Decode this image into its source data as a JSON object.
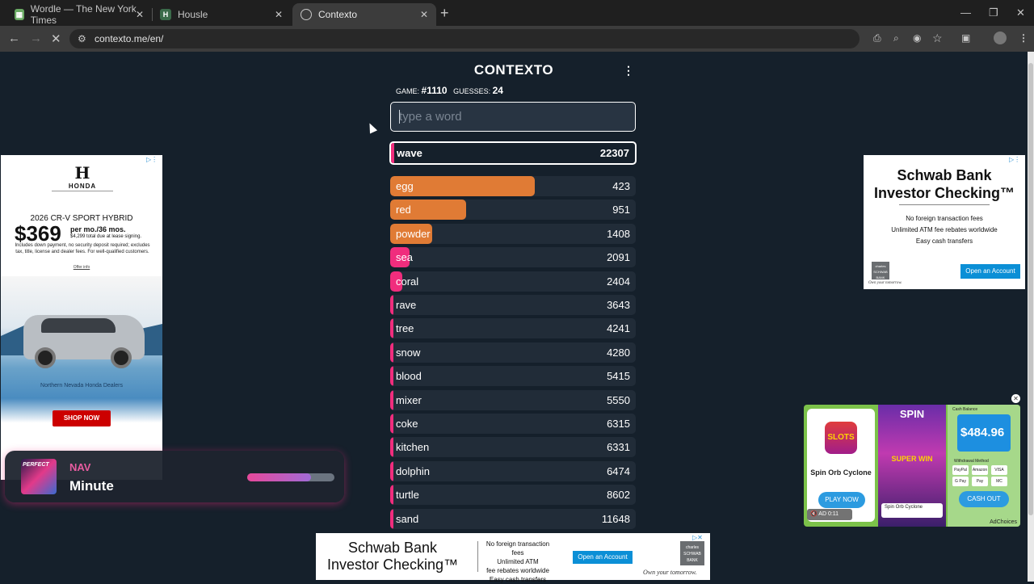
{
  "browser": {
    "tabs": [
      {
        "title": "Wordle — The New York Times",
        "favicon": "wordle-grid-icon"
      },
      {
        "title": "Housle",
        "favicon": "housle-icon"
      },
      {
        "title": "Contexto",
        "favicon": "contexto-icon"
      }
    ],
    "url": "contexto.me/en/"
  },
  "game": {
    "title": "CONTEXTO",
    "game_label": "GAME:",
    "game_number": "#1110",
    "guesses_label": "GUESSES:",
    "guesses_count": "24",
    "input_placeholder": "type a word",
    "last_guess": {
      "word": "wave",
      "rank": "22307"
    },
    "guesses": [
      {
        "word": "egg",
        "rank": "423",
        "fill": 0.59,
        "color": "#e07b35"
      },
      {
        "word": "red",
        "rank": "951",
        "fill": 0.31,
        "color": "#e07b35"
      },
      {
        "word": "powder",
        "rank": "1408",
        "fill": 0.17,
        "color": "#e07b35"
      },
      {
        "word": "sea",
        "rank": "2091",
        "fill": 0.08,
        "color": "#f02d7d"
      },
      {
        "word": "coral",
        "rank": "2404",
        "fill": 0.05,
        "color": "#f02d7d"
      },
      {
        "word": "rave",
        "rank": "3643",
        "fill": 0.012,
        "color": "#f02d7d"
      },
      {
        "word": "tree",
        "rank": "4241",
        "fill": 0.012,
        "color": "#f02d7d"
      },
      {
        "word": "snow",
        "rank": "4280",
        "fill": 0.012,
        "color": "#f02d7d"
      },
      {
        "word": "blood",
        "rank": "5415",
        "fill": 0.012,
        "color": "#f02d7d"
      },
      {
        "word": "mixer",
        "rank": "5550",
        "fill": 0.012,
        "color": "#f02d7d"
      },
      {
        "word": "coke",
        "rank": "6315",
        "fill": 0.012,
        "color": "#f02d7d"
      },
      {
        "word": "kitchen",
        "rank": "6331",
        "fill": 0.012,
        "color": "#f02d7d"
      },
      {
        "word": "dolphin",
        "rank": "6474",
        "fill": 0.012,
        "color": "#f02d7d"
      },
      {
        "word": "turtle",
        "rank": "8602",
        "fill": 0.012,
        "color": "#f02d7d"
      },
      {
        "word": "sand",
        "rank": "11648",
        "fill": 0.012,
        "color": "#f02d7d"
      }
    ]
  },
  "honda_ad": {
    "brand": "HONDA",
    "model": "2026 CR-V SPORT HYBRID",
    "price": "$369",
    "per": "per mo./36 mos.",
    "total": "$4,299 total due at lease signing.",
    "fine_print": "Includes down payment, no security deposit required; excludes tax, title, license and dealer fees. For well-qualified customers.",
    "offer_info": "Offer info",
    "dealers": "Northern Nevada Honda Dealers",
    "cta": "SHOP NOW"
  },
  "schwab_right_ad": {
    "title_line1": "Schwab Bank",
    "title_line2": "Investor Checking™",
    "line1": "No foreign transaction fees",
    "line2": "Unlimited ATM fee rebates worldwide",
    "line3": "Easy cash transfers",
    "logo": "charles SCHWAB BANK",
    "cta": "Open an Account",
    "tagline": "Own your tomorrow."
  },
  "schwab_bottom_ad": {
    "title_line1": "Schwab Bank",
    "title_line2": "Investor Checking™",
    "line1": "No foreign transaction fees",
    "line2": "Unlimited ATM",
    "line3": "fee rebates worldwide",
    "line4": "Easy cash transfers",
    "cta": "Open an Account",
    "logo": "charles SCHWAB BANK",
    "tagline": "Own your tomorrow."
  },
  "video_widget": {
    "thumb_label": "PERFECT",
    "channel": "NAV",
    "title": "Minute",
    "progress": 0.73
  },
  "slots_ad": {
    "icon_text": "SLOTS",
    "name": "Spin Orb Cyclone",
    "play": "PLAY NOW",
    "spin": "SPIN",
    "super_win": "SUPER WIN",
    "name2": "Spin Orb Cyclone",
    "cash_balance_label": "Cash Balance",
    "amount": "$484.96",
    "withdrawal_label": "Withdrawal Method",
    "pay_methods": [
      "PayPal",
      "Amazon",
      "VISA",
      "G Pay",
      "Pay",
      "MC"
    ],
    "cashout": "CASH OUT",
    "ad_label": "AD",
    "time": "0:11",
    "adchoices": "AdChoices"
  }
}
